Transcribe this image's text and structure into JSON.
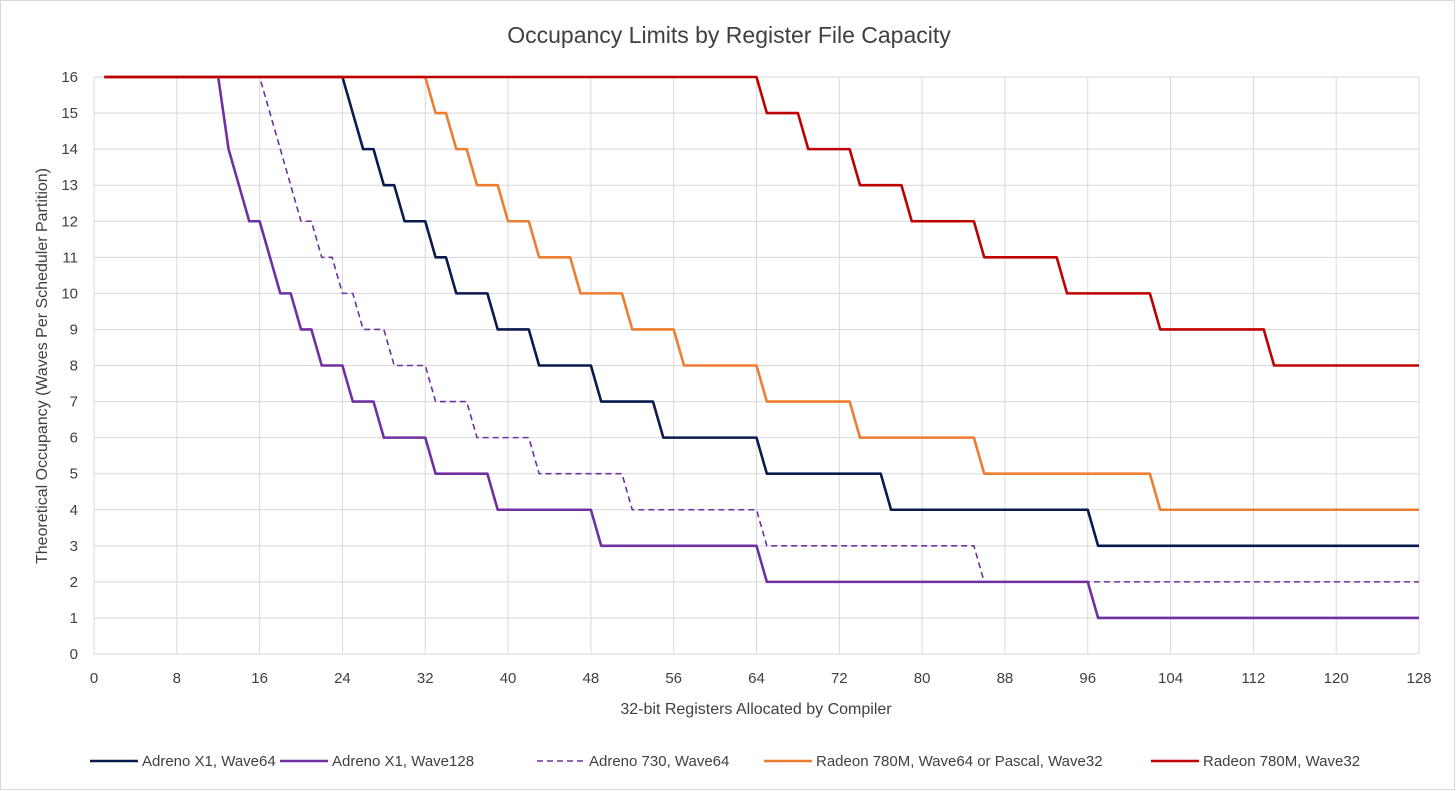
{
  "chart_data": {
    "type": "line",
    "title": "Occupancy Limits by Register File Capacity",
    "xlabel": "32-bit Registers Allocated by Compiler",
    "ylabel": "Theoretical Occupancy (Waves Per Scheduler Partition)",
    "xlim": [
      0,
      128
    ],
    "ylim": [
      0,
      16
    ],
    "xticks": [
      0,
      8,
      16,
      24,
      32,
      40,
      48,
      56,
      64,
      72,
      80,
      88,
      96,
      104,
      112,
      120,
      128
    ],
    "yticks": [
      0,
      1,
      2,
      3,
      4,
      5,
      6,
      7,
      8,
      9,
      10,
      11,
      12,
      13,
      14,
      15,
      16
    ],
    "grid": true,
    "legend_position": "bottom",
    "x_range": [
      1,
      128
    ],
    "series": [
      {
        "name": "Adreno X1, Wave64",
        "color": "#0b1a4e",
        "dash": "solid",
        "numerator": 384,
        "cap": 16
      },
      {
        "name": "Adreno X1, Wave128",
        "color": "#7030a0",
        "dash": "solid",
        "numerator": 192,
        "cap": 16
      },
      {
        "name": "Adreno 730, Wave64",
        "color": "#7030a0",
        "dash": "dashed",
        "numerator": 256,
        "cap": 16
      },
      {
        "name": "Radeon 780M, Wave64 or Pascal, Wave32",
        "color": "#ed7d31",
        "dash": "solid",
        "numerator": 512,
        "cap": 16
      },
      {
        "name": "Radeon 780M, Wave32",
        "color": "#c00000",
        "dash": "solid",
        "numerator": 1024,
        "cap": 16
      }
    ]
  }
}
